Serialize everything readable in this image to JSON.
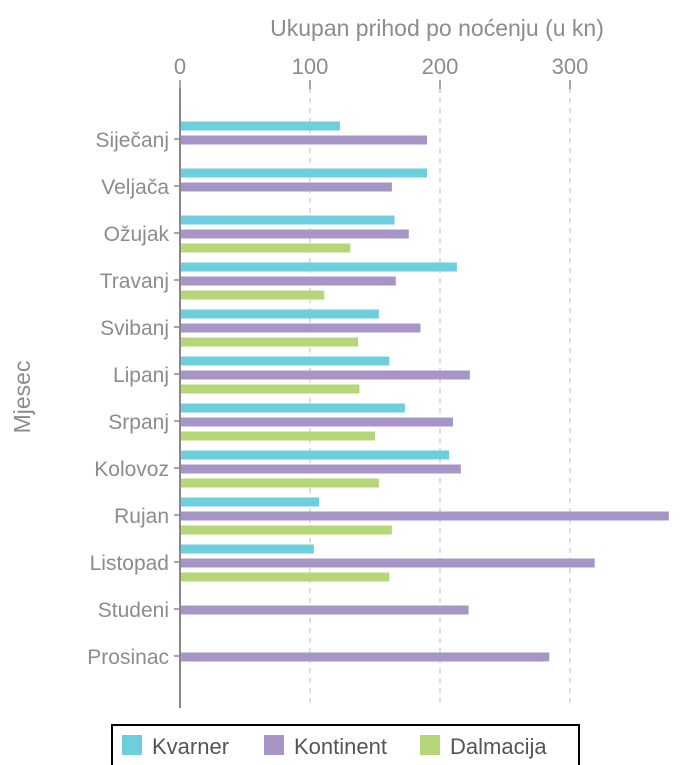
{
  "chart_data": {
    "type": "bar",
    "orientation": "horizontal",
    "xlabel": "Ukupan prihod po noćenju (u kn)",
    "ylabel": "Mjesec",
    "xlim": [
      0,
      385
    ],
    "xticks": [
      "0",
      "100",
      "200",
      "300"
    ],
    "categories": [
      "Siječanj",
      "Veljača",
      "Ožujak",
      "Travanj",
      "Svibanj",
      "Lipanj",
      "Srpanj",
      "Kolovoz",
      "Rujan",
      "Listopad",
      "Studeni",
      "Prosinac"
    ],
    "series": [
      {
        "name": "Kvarner",
        "color": "#6dcfde",
        "values": [
          123,
          190,
          165,
          213,
          153,
          161,
          173,
          207,
          107,
          103,
          null,
          null
        ]
      },
      {
        "name": "Kontinent",
        "color": "#a895c8",
        "values": [
          190,
          163,
          176,
          166,
          185,
          223,
          210,
          216,
          376,
          319,
          222,
          284
        ]
      },
      {
        "name": "Dalmacija",
        "color": "#b5d777",
        "values": [
          null,
          null,
          131,
          111,
          137,
          138,
          150,
          153,
          163,
          161,
          null,
          null
        ]
      }
    ],
    "grid": "vertical-dashed",
    "legend_position": "bottom"
  }
}
